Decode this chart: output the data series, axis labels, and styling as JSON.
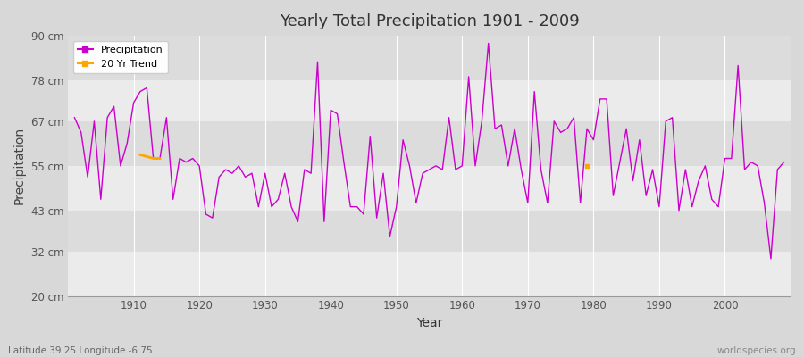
{
  "title": "Yearly Total Precipitation 1901 - 2009",
  "xlabel": "Year",
  "ylabel": "Precipitation",
  "subtitle": "Latitude 39.25 Longitude -6.75",
  "watermark": "worldspecies.org",
  "line_color": "#cc00cc",
  "trend_color": "#FFA500",
  "fig_bg_color": "#D8D8D8",
  "plot_bg_color": "#E8E8E8",
  "band_color_light": "#EBEBEB",
  "band_color_dark": "#DCDCDC",
  "ylim": [
    20,
    90
  ],
  "yticks": [
    20,
    32,
    43,
    55,
    67,
    78,
    90
  ],
  "ytick_labels": [
    "20 cm",
    "32 cm",
    "43 cm",
    "55 cm",
    "67 cm",
    "78 cm",
    "90 cm"
  ],
  "years": [
    1901,
    1902,
    1903,
    1904,
    1905,
    1906,
    1907,
    1908,
    1909,
    1910,
    1911,
    1912,
    1913,
    1914,
    1915,
    1916,
    1917,
    1918,
    1919,
    1920,
    1921,
    1922,
    1923,
    1924,
    1925,
    1926,
    1927,
    1928,
    1929,
    1930,
    1931,
    1932,
    1933,
    1934,
    1935,
    1936,
    1937,
    1938,
    1939,
    1940,
    1941,
    1942,
    1943,
    1944,
    1945,
    1946,
    1947,
    1948,
    1949,
    1950,
    1951,
    1952,
    1953,
    1954,
    1955,
    1956,
    1957,
    1958,
    1959,
    1960,
    1961,
    1962,
    1963,
    1964,
    1965,
    1966,
    1967,
    1968,
    1969,
    1970,
    1971,
    1972,
    1973,
    1974,
    1975,
    1976,
    1977,
    1978,
    1979,
    1980,
    1981,
    1982,
    1983,
    1984,
    1985,
    1986,
    1987,
    1988,
    1989,
    1990,
    1991,
    1992,
    1993,
    1994,
    1995,
    1996,
    1997,
    1998,
    1999,
    2000,
    2001,
    2002,
    2003,
    2004,
    2005,
    2006,
    2007,
    2008,
    2009
  ],
  "precip": [
    68,
    64,
    52,
    67,
    46,
    68,
    71,
    55,
    61,
    72,
    75,
    76,
    57,
    57,
    68,
    46,
    57,
    56,
    57,
    55,
    42,
    41,
    52,
    54,
    53,
    55,
    52,
    53,
    44,
    53,
    44,
    46,
    53,
    44,
    40,
    54,
    53,
    83,
    40,
    70,
    69,
    56,
    44,
    44,
    42,
    63,
    41,
    53,
    36,
    44,
    62,
    55,
    45,
    53,
    54,
    55,
    54,
    68,
    54,
    55,
    79,
    55,
    67,
    88,
    65,
    66,
    55,
    65,
    54,
    45,
    75,
    54,
    45,
    67,
    64,
    65,
    68,
    45,
    65,
    62,
    73,
    73,
    47,
    56,
    65,
    51,
    62,
    47,
    54,
    44,
    67,
    68,
    43,
    54,
    44,
    51,
    55,
    46,
    44,
    57,
    57,
    82,
    54,
    56,
    55,
    45,
    30,
    54,
    56
  ],
  "trend_years_1": [
    1911,
    1912,
    1913,
    1914
  ],
  "trend_values_1": [
    58,
    57.5,
    57.0,
    57.0
  ],
  "trend_point_year": 1979,
  "trend_point_value": 55,
  "xlim": [
    1900,
    2010
  ],
  "xticks": [
    1910,
    1920,
    1930,
    1940,
    1950,
    1960,
    1970,
    1980,
    1990,
    2000
  ]
}
